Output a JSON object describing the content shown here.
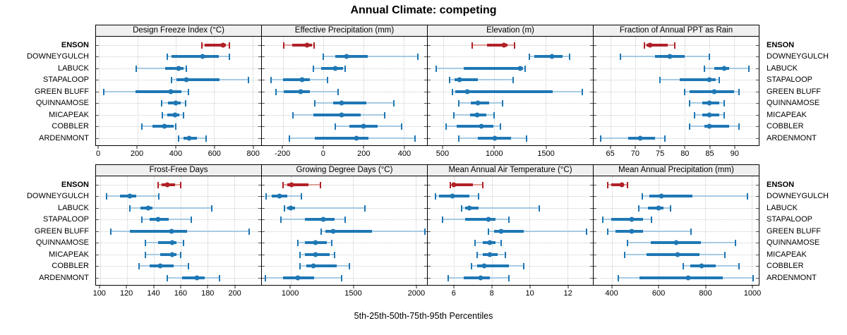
{
  "title": "Annual Climate: competing",
  "caption": "5th-25th-50th-75th-95th Percentiles",
  "percentile_labels": [
    "5th",
    "25th",
    "50th",
    "75th",
    "95th"
  ],
  "stations": [
    "ENSON",
    "DOWNEYGULCH",
    "LABUCK",
    "STAPALOOP",
    "GREEN BLUFF",
    "QUINNAMOSE",
    "MICAPEAK",
    "COBBLER",
    "ARDENMONT"
  ],
  "highlight_station": "ENSON",
  "colors": {
    "highlight": "#b02127",
    "highlight_light": "#dd9e98",
    "normal": "#1f77b4",
    "normal_light": "#a6cbe3",
    "grid": "#cbcbcb",
    "strip_bg": "#f0f0f0",
    "panel_border": "#000000"
  },
  "chart_data": [
    {
      "type": "errorbar-dotplot",
      "title": "Design Freeze Index (°C)",
      "xlim": [
        -15,
        845
      ],
      "ticks": [
        0,
        200,
        400,
        600,
        800
      ],
      "rows": [
        [
          535,
          550,
          645,
          660,
          680
        ],
        [
          355,
          380,
          540,
          625,
          680
        ],
        [
          195,
          345,
          415,
          440,
          455
        ],
        [
          380,
          405,
          455,
          630,
          780
        ],
        [
          25,
          190,
          375,
          430,
          465
        ],
        [
          325,
          360,
          400,
          425,
          450
        ],
        [
          330,
          355,
          395,
          420,
          440
        ],
        [
          225,
          280,
          340,
          390,
          400
        ],
        [
          415,
          440,
          470,
          510,
          560
        ]
      ]
    },
    {
      "type": "errorbar-dotplot",
      "title": "Effective Precipitation (mm)",
      "xlim": [
        -305,
        515
      ],
      "ticks": [
        -200,
        0,
        200,
        400
      ],
      "rows": [
        [
          -195,
          -155,
          -80,
          -55,
          -45
        ],
        [
          0,
          60,
          115,
          220,
          470
        ],
        [
          -50,
          -10,
          58,
          98,
          110
        ],
        [
          -260,
          -200,
          -105,
          -68,
          20
        ],
        [
          -235,
          -195,
          -112,
          -65,
          72
        ],
        [
          -42,
          50,
          90,
          215,
          350
        ],
        [
          -150,
          -50,
          90,
          185,
          305
        ],
        [
          58,
          130,
          198,
          270,
          390
        ],
        [
          -170,
          -42,
          164,
          225,
          455
        ]
      ]
    },
    {
      "type": "errorbar-dotplot",
      "title": "Elevation (m)",
      "xlim": [
        350,
        1960
      ],
      "ticks": [
        500,
        1000,
        1500
      ],
      "rows": [
        [
          780,
          930,
          1090,
          1125,
          1195
        ],
        [
          1340,
          1390,
          1560,
          1665,
          1735
        ],
        [
          435,
          700,
          1250,
          1280,
          1300
        ],
        [
          565,
          610,
          660,
          840,
          1180
        ],
        [
          590,
          620,
          735,
          1570,
          1860
        ],
        [
          650,
          770,
          840,
          950,
          1080
        ],
        [
          605,
          760,
          835,
          920,
          1000
        ],
        [
          530,
          630,
          870,
          990,
          1060
        ],
        [
          655,
          840,
          1005,
          1160,
          1310
        ]
      ]
    },
    {
      "type": "errorbar-dotplot",
      "title": "Fraction of Annual PPT as Rain",
      "xlim": [
        61.5,
        95
      ],
      "ticks": [
        65,
        70,
        75,
        80,
        85,
        90
      ],
      "rows": [
        [
          71.8,
          72.2,
          73,
          76.5,
          78
        ],
        [
          67,
          74,
          77,
          80,
          85
        ],
        [
          84,
          86,
          88,
          89,
          93
        ],
        [
          75,
          79,
          85,
          86.3,
          87
        ],
        [
          80,
          81,
          86,
          90,
          91
        ],
        [
          81,
          83.5,
          85,
          87,
          88
        ],
        [
          82,
          83.5,
          85,
          87,
          88
        ],
        [
          81,
          84,
          85,
          89,
          91
        ],
        [
          63,
          68.5,
          71,
          74,
          76
        ]
      ]
    },
    {
      "type": "errorbar-dotplot",
      "title": "Frost-Free Days",
      "xlim": [
        97,
        220
      ],
      "ticks": [
        100,
        120,
        140,
        160,
        180,
        200
      ],
      "rows": [
        [
          143,
          146,
          150,
          156,
          160
        ],
        [
          105,
          115,
          122,
          127,
          144
        ],
        [
          122,
          130,
          136,
          139,
          183
        ],
        [
          131,
          137,
          143,
          151,
          168
        ],
        [
          108,
          122,
          153,
          165,
          211
        ],
        [
          134,
          143,
          154,
          157,
          162
        ],
        [
          134,
          145,
          154,
          157,
          160
        ],
        [
          129,
          137,
          145,
          155,
          166
        ],
        [
          150,
          161,
          172,
          178,
          189
        ]
      ]
    },
    {
      "type": "errorbar-dotplot",
      "title": "Growing Degree Days (°C)",
      "xlim": [
        770,
        2090
      ],
      "ticks": [
        1000,
        1500,
        2000
      ],
      "rows": [
        [
          940,
          975,
          1005,
          1140,
          1240
        ],
        [
          805,
          850,
          910,
          975,
          1085
        ],
        [
          950,
          975,
          1000,
          1035,
          1595
        ],
        [
          920,
          1115,
          1260,
          1350,
          1435
        ],
        [
          1245,
          1280,
          1340,
          1650,
          2075
        ],
        [
          1060,
          1115,
          1200,
          1290,
          1330
        ],
        [
          1075,
          1115,
          1200,
          1310,
          1350
        ],
        [
          1075,
          1125,
          1180,
          1370,
          1470
        ],
        [
          800,
          940,
          1055,
          1190,
          1410
        ]
      ]
    },
    {
      "type": "errorbar-dotplot",
      "title": "Mean Annual Air Temperature (°C)",
      "xlim": [
        4.6,
        13.35
      ],
      "ticks": [
        6,
        8,
        10,
        12
      ],
      "rows": [
        [
          5.8,
          5.9,
          6.0,
          7.0,
          7.5
        ],
        [
          5.0,
          5.2,
          5.9,
          6.8,
          7.3
        ],
        [
          6.4,
          6.6,
          6.8,
          7.3,
          10.5
        ],
        [
          5.4,
          6.6,
          7.8,
          8.2,
          8.9
        ],
        [
          7.8,
          8.1,
          8.5,
          9.7,
          13.0
        ],
        [
          7.1,
          7.5,
          7.9,
          8.2,
          8.5
        ],
        [
          7.2,
          7.5,
          7.9,
          8.3,
          8.7
        ],
        [
          6.9,
          7.2,
          7.6,
          8.9,
          9.7
        ],
        [
          5.7,
          6.5,
          7.4,
          7.9,
          8.9
        ]
      ]
    },
    {
      "type": "errorbar-dotplot",
      "title": "Mean Annual Precipitation (mm)",
      "xlim": [
        320,
        1030
      ],
      "ticks": [
        400,
        600,
        800,
        1000
      ],
      "rows": [
        [
          380,
          395,
          440,
          450,
          467
        ],
        [
          530,
          560,
          612,
          745,
          980
        ],
        [
          515,
          553,
          598,
          620,
          650
        ],
        [
          360,
          395,
          484,
          533,
          570
        ],
        [
          382,
          413,
          484,
          533,
          740
        ],
        [
          465,
          565,
          675,
          780,
          930
        ],
        [
          455,
          548,
          680,
          775,
          885
        ],
        [
          705,
          735,
          785,
          845,
          945
        ],
        [
          425,
          517,
          726,
          875,
          1005
        ]
      ]
    }
  ]
}
